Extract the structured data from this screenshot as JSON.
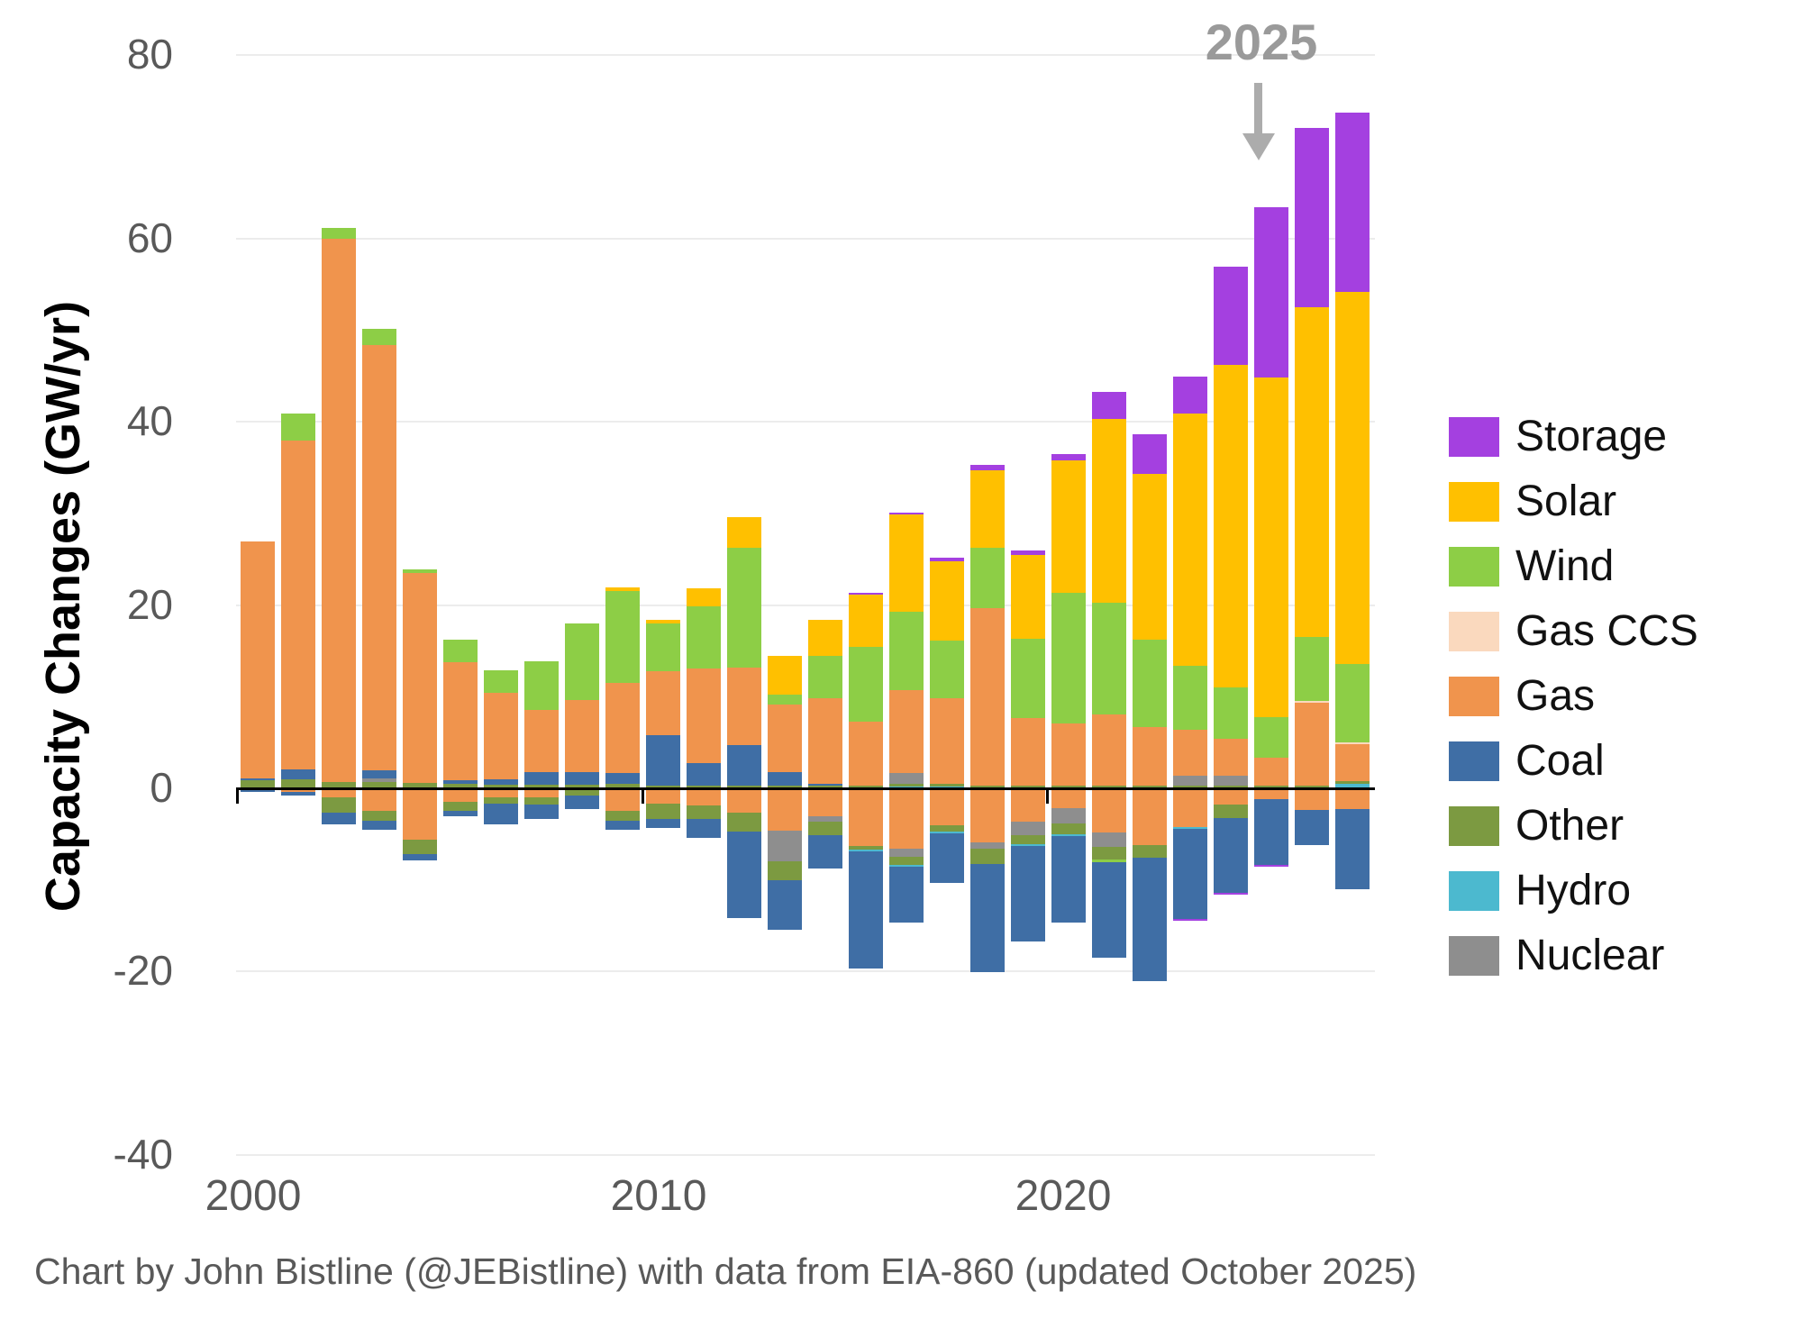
{
  "annotation": {
    "text": "2025"
  },
  "y_axis": {
    "title": "Capacity Changes (GW/yr)",
    "tick_values": [
      80,
      60,
      40,
      20,
      0,
      -20,
      -40
    ]
  },
  "x_axis": {
    "tick_labels": [
      "2000",
      "2010",
      "2020"
    ]
  },
  "footer": {
    "text": "Chart by John Bistline (@JEBistline) with data from EIA-860 (updated October 2025)"
  },
  "legend": [
    {
      "key": "storage",
      "label": "Storage"
    },
    {
      "key": "solar",
      "label": "Solar"
    },
    {
      "key": "wind",
      "label": "Wind"
    },
    {
      "key": "gas_ccs",
      "label": "Gas CCS"
    },
    {
      "key": "gas",
      "label": "Gas"
    },
    {
      "key": "coal",
      "label": "Coal"
    },
    {
      "key": "other",
      "label": "Other"
    },
    {
      "key": "hydro",
      "label": "Hydro"
    },
    {
      "key": "nuclear",
      "label": "Nuclear"
    }
  ],
  "colors": {
    "storage": "#a440e0",
    "solar": "#ffc000",
    "wind": "#8dce46",
    "gas_ccs": "#fad9be",
    "gas": "#f0944d",
    "coal": "#3f6ea5",
    "other": "#7c9a41",
    "hydro": "#4cb9cf",
    "nuclear": "#8e8e8e",
    "gridline": "#ececec",
    "axis": "#000000",
    "tick_text": "#595959",
    "annotation_text": "#9a9a9a",
    "arrow": "#acacac"
  },
  "chart_data": {
    "type": "bar",
    "stacked": true,
    "title": "",
    "xlabel": "",
    "ylabel": "Capacity Changes (GW/yr)",
    "ylim": [
      -40,
      80
    ],
    "xlim": [
      2000,
      2028
    ],
    "grid": "horizontal",
    "legend_position": "right",
    "units": "GW/yr",
    "pos_stack_order": [
      "hydro",
      "other",
      "nuclear",
      "coal",
      "gas",
      "gas_ccs",
      "wind",
      "solar",
      "storage"
    ],
    "neg_stack_order": [
      "gas",
      "nuclear",
      "other",
      "hydro",
      "wind",
      "coal",
      "storage"
    ],
    "years": [
      {
        "year": 2000,
        "pos": {
          "other": 0.9,
          "coal": 0.2,
          "gas": 25.8
        },
        "neg": {
          "coal": -0.4
        }
      },
      {
        "year": 2001,
        "pos": {
          "other": 1.0,
          "coal": 1.1,
          "gas": 35.9,
          "wind": 2.9
        },
        "neg": {
          "gas": -0.4,
          "coal": -0.4
        }
      },
      {
        "year": 2002,
        "pos": {
          "other": 0.7,
          "gas": 59.3,
          "wind": 1.2
        },
        "neg": {
          "gas": -1.0,
          "other": -1.7,
          "coal": -1.2
        }
      },
      {
        "year": 2003,
        "pos": {
          "nuclear": 0.4,
          "other": 0.7,
          "coal": 0.9,
          "gas": 46.4,
          "wind": 1.7
        },
        "neg": {
          "gas": -2.5,
          "other": -1.0,
          "coal": -1.0
        }
      },
      {
        "year": 2004,
        "pos": {
          "other": 0.6,
          "gas": 22.9,
          "wind": 0.4
        },
        "neg": {
          "gas": -5.6,
          "other": -1.6,
          "coal": -0.7
        }
      },
      {
        "year": 2005,
        "pos": {
          "other": 0.5,
          "coal": 0.4,
          "gas": 12.9,
          "wind": 2.4
        },
        "neg": {
          "gas": -1.5,
          "other": -1.0,
          "coal": -0.5
        }
      },
      {
        "year": 2006,
        "pos": {
          "other": 0.4,
          "coal": 0.6,
          "gas": 9.4,
          "wind": 2.5
        },
        "neg": {
          "gas": -1.0,
          "other": -0.7,
          "coal": -2.2
        }
      },
      {
        "year": 2007,
        "pos": {
          "other": 0.4,
          "coal": 1.4,
          "gas": 6.8,
          "wind": 5.3
        },
        "neg": {
          "gas": -1.0,
          "other": -0.8,
          "coal": -1.5
        }
      },
      {
        "year": 2008,
        "pos": {
          "other": 0.4,
          "coal": 1.4,
          "gas": 7.8,
          "wind": 8.4
        },
        "neg": {
          "other": -0.8,
          "coal": -1.5
        }
      },
      {
        "year": 2009,
        "pos": {
          "other": 0.5,
          "coal": 1.2,
          "gas": 9.8,
          "wind": 10.0,
          "solar": 0.4
        },
        "neg": {
          "gas": -2.5,
          "other": -1.0,
          "coal": -1.0
        }
      },
      {
        "year": 2010,
        "pos": {
          "other": 0.3,
          "coal": 5.5,
          "gas": 7.0,
          "wind": 5.2,
          "solar": 0.4
        },
        "neg": {
          "gas": -1.7,
          "other": -1.6,
          "coal": -1.0
        }
      },
      {
        "year": 2011,
        "pos": {
          "other": 0.3,
          "coal": 2.5,
          "gas": 10.3,
          "wind": 6.8,
          "solar": 1.9
        },
        "neg": {
          "gas": -1.9,
          "other": -1.4,
          "coal": -2.1
        }
      },
      {
        "year": 2012,
        "pos": {
          "other": 0.3,
          "coal": 4.4,
          "gas": 8.5,
          "wind": 13.1,
          "solar": 3.3
        },
        "neg": {
          "gas": -2.7,
          "other": -2.0,
          "coal": -9.5
        }
      },
      {
        "year": 2013,
        "pos": {
          "other": 0.3,
          "coal": 1.5,
          "gas": 7.3,
          "wind": 1.1,
          "solar": 4.3
        },
        "neg": {
          "gas": -4.6,
          "nuclear": -3.4,
          "other": -2.0,
          "coal": -5.4
        }
      },
      {
        "year": 2014,
        "pos": {
          "other": 0.3,
          "coal": 0.2,
          "gas": 9.3,
          "wind": 4.7,
          "solar": 3.9
        },
        "neg": {
          "gas": -3.0,
          "nuclear": -0.6,
          "other": -1.5,
          "coal": -3.7
        }
      },
      {
        "year": 2015,
        "pos": {
          "other": 0.3,
          "gas": 7.0,
          "wind": 8.1,
          "solar": 5.7,
          "storage": 0.2
        },
        "neg": {
          "gas": -6.3,
          "other": -0.4,
          "hydro": -0.2,
          "coal": -12.8
        }
      },
      {
        "year": 2016,
        "pos": {
          "hydro": 0.2,
          "other": 0.3,
          "nuclear": 1.2,
          "gas": 9.0,
          "wind": 8.6,
          "solar": 10.6,
          "storage": 0.2
        },
        "neg": {
          "gas": -6.6,
          "nuclear": -0.9,
          "other": -0.9,
          "hydro": -0.2,
          "coal": -6.1
        }
      },
      {
        "year": 2017,
        "pos": {
          "hydro": 0.2,
          "other": 0.3,
          "gas": 9.3,
          "wind": 6.3,
          "solar": 8.7,
          "storage": 0.4
        },
        "neg": {
          "gas": -4.0,
          "other": -0.7,
          "hydro": -0.2,
          "coal": -5.4
        }
      },
      {
        "year": 2018,
        "pos": {
          "other": 0.3,
          "gas": 19.4,
          "wind": 6.6,
          "solar": 8.4,
          "storage": 0.6
        },
        "neg": {
          "gas": -5.9,
          "nuclear": -0.7,
          "other": -1.7,
          "coal": -11.8
        }
      },
      {
        "year": 2019,
        "pos": {
          "other": 0.3,
          "gas": 7.4,
          "wind": 8.6,
          "solar": 9.2,
          "storage": 0.5
        },
        "neg": {
          "gas": -3.6,
          "nuclear": -1.5,
          "other": -1.0,
          "hydro": -0.2,
          "coal": -10.4
        }
      },
      {
        "year": 2020,
        "pos": {
          "other": 0.3,
          "gas": 6.8,
          "wind": 14.2,
          "solar": 14.5,
          "storage": 0.7
        },
        "neg": {
          "gas": -2.2,
          "nuclear": -1.6,
          "other": -1.2,
          "hydro": -0.2,
          "coal": -9.5
        }
      },
      {
        "year": 2021,
        "pos": {
          "other": 0.3,
          "gas": 7.8,
          "wind": 12.2,
          "solar": 20.0,
          "storage": 3.0
        },
        "neg": {
          "gas": -4.8,
          "nuclear": -1.6,
          "other": -1.4,
          "wind": -0.3,
          "coal": -10.4
        }
      },
      {
        "year": 2022,
        "pos": {
          "other": 0.3,
          "gas": 6.4,
          "wind": 9.5,
          "solar": 18.1,
          "storage": 4.3
        },
        "neg": {
          "gas": -6.2,
          "other": -1.4,
          "coal": -13.4
        }
      },
      {
        "year": 2023,
        "pos": {
          "nuclear": 1.1,
          "other": 0.3,
          "gas": 5.0,
          "wind": 7.0,
          "solar": 27.5,
          "storage": 4.0
        },
        "neg": {
          "gas": -4.2,
          "hydro": -0.2,
          "coal": -9.9,
          "storage": -0.2
        }
      },
      {
        "year": 2024,
        "pos": {
          "nuclear": 1.1,
          "other": 0.3,
          "gas": 4.0,
          "wind": 5.6,
          "solar": 35.2,
          "storage": 10.7
        },
        "neg": {
          "gas": -1.8,
          "other": -1.4,
          "coal": -8.2,
          "storage": -0.2
        }
      },
      {
        "year": 2025,
        "pos": {
          "other": 0.3,
          "gas": 3.0,
          "wind": 4.5,
          "solar": 37.0,
          "storage": 18.6
        },
        "neg": {
          "gas": -1.2,
          "coal": -7.2,
          "storage": -0.2
        }
      },
      {
        "year": 2026,
        "pos": {
          "other": 0.3,
          "gas": 9.0,
          "gas_ccs": 0.2,
          "wind": 7.0,
          "solar": 36.0,
          "storage": 19.6
        },
        "neg": {
          "gas": -2.4,
          "coal": -3.8
        }
      },
      {
        "year": 2027,
        "pos": {
          "hydro": 0.5,
          "other": 0.3,
          "gas": 4.0,
          "gas_ccs": 0.2,
          "wind": 8.6,
          "solar": 40.6,
          "storage": 19.5
        },
        "neg": {
          "gas": -2.3,
          "coal": -8.7
        }
      }
    ]
  }
}
